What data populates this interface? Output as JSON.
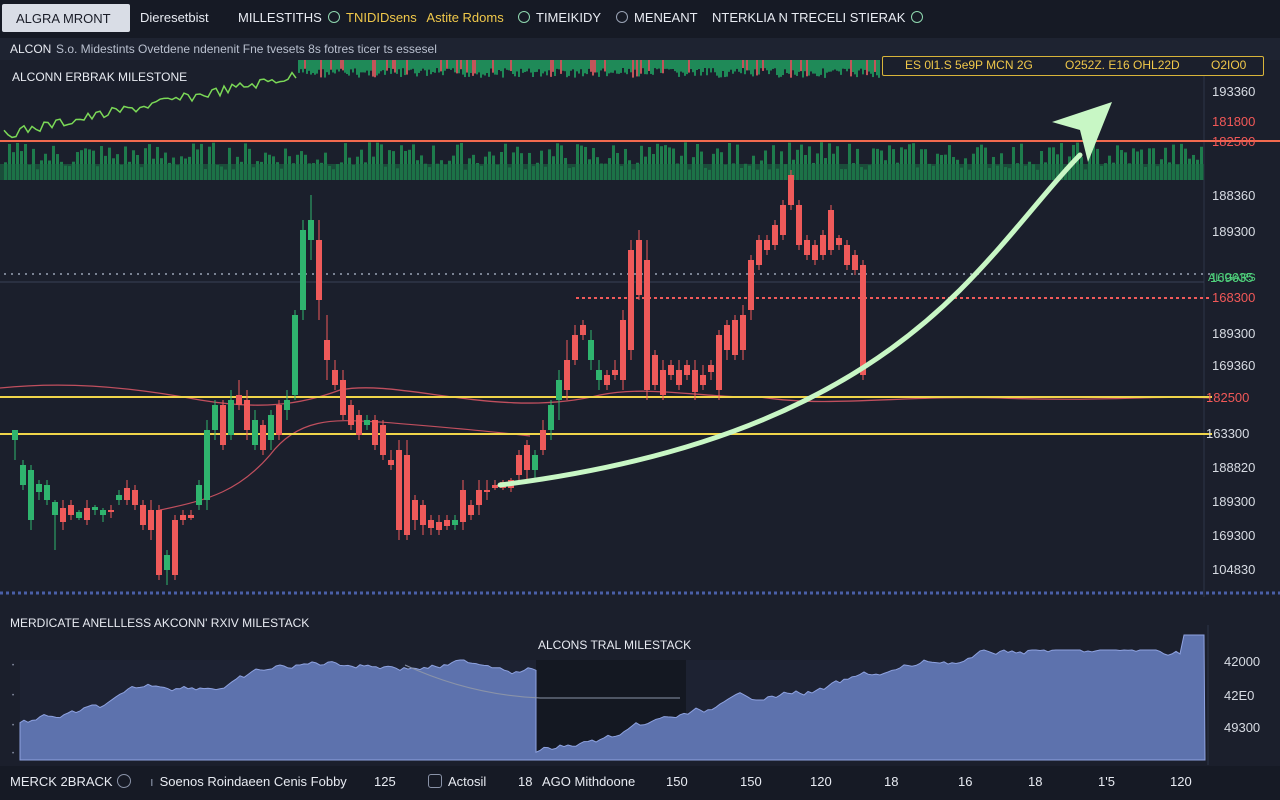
{
  "toolbar": {
    "tab_active": "ALGRA MRONT",
    "item1": "Dieresetbist",
    "item2": "MILLESTITHS",
    "item3_a": "TNIDIDsens",
    "item3_b": "Astite Rdoms",
    "item4": "TIMEIKIDY",
    "item5": "MENEANT",
    "item6": "NTERKLIA N TRECELI STIERAK"
  },
  "subheader": {
    "symbol": "ALCON",
    "description": "S.o. Midestints Ovetdene ndenenit Fne tvesets 8s fotres ticer ts essesel"
  },
  "chart": {
    "title": "ALCONN ERBRAK MILESTONE",
    "stats": {
      "a": "ES 0l1.S 5e9P MCN 2G",
      "b": "O252Z. E16 OHL22D",
      "c": "O2IO0"
    },
    "price_axis": [
      {
        "text": "193360",
        "style": "normal"
      },
      {
        "text": "181800",
        "style": "red"
      },
      {
        "text": "182500",
        "style": "red"
      },
      {
        "text": "188360",
        "style": "normal"
      },
      {
        "text": "189300",
        "style": "normal"
      },
      {
        "text": "169635",
        "style": "green"
      },
      {
        "text": "ALIGARS",
        "style": "green"
      },
      {
        "text": "168300",
        "style": "red"
      },
      {
        "text": "189300",
        "style": "normal"
      },
      {
        "text": "169360",
        "style": "normal"
      },
      {
        "text": "182500",
        "style": "red"
      },
      {
        "text": "163300",
        "style": "normal"
      },
      {
        "text": "188820",
        "style": "normal"
      },
      {
        "text": "189300",
        "style": "normal"
      },
      {
        "text": "169300",
        "style": "normal"
      },
      {
        "text": "104830",
        "style": "normal"
      }
    ]
  },
  "bottom_panel": {
    "title": "MERDICATE ANELLLESS AKCONN' RXIV MILESTACK",
    "subtitle": "ALCONS TRAL MILESTACK",
    "axis": [
      "42000",
      "42E0",
      "49300"
    ]
  },
  "statusbar": {
    "item1": "MERCK 2BRACK",
    "item2": "Soenos Roindaeen Cenis Fobby",
    "item3": "125",
    "item4": "Actosil",
    "item5": "18",
    "item6": "AGO Mithdoone",
    "ticks": [
      "150",
      "150",
      "120",
      "18",
      "16",
      "18",
      "1'5",
      "120"
    ]
  },
  "colors": {
    "bull": "#2fb46e",
    "bear": "#ef5a5a",
    "arrow": "#c8f7c5",
    "support": "#f0d54a",
    "area": "#5d72ad"
  }
}
